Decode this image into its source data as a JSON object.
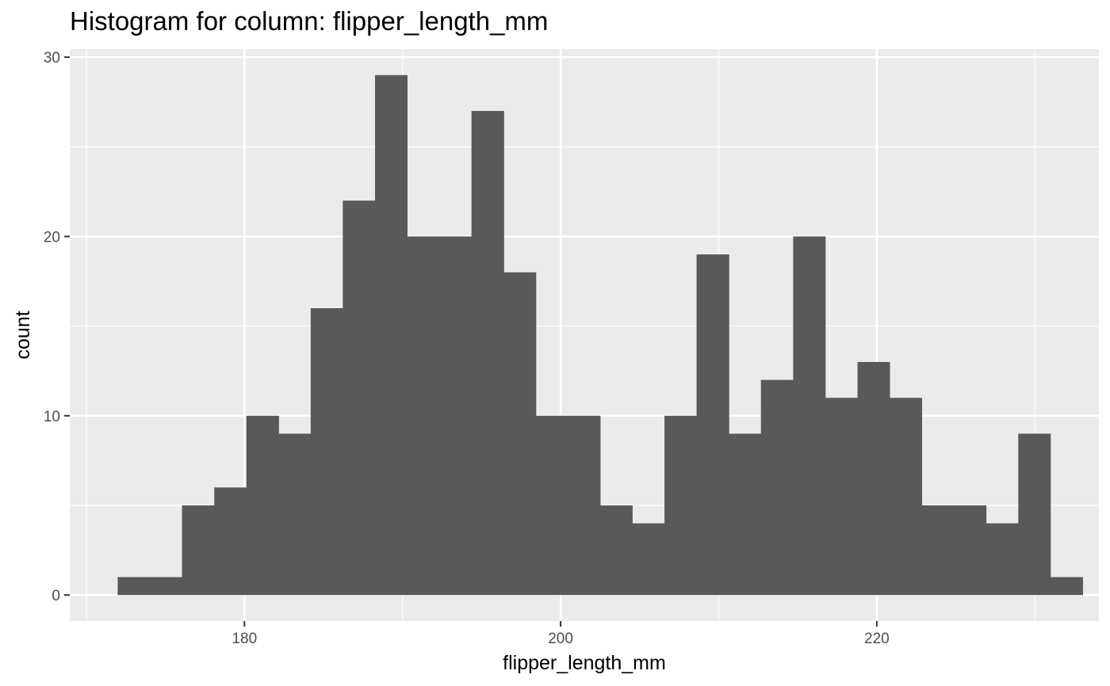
{
  "chart_data": {
    "type": "bar",
    "title": "Histogram for column: flipper_length_mm",
    "xlabel": "flipper_length_mm",
    "ylabel": "count",
    "xlim": [
      168.95,
      234.05
    ],
    "ylim": [
      -1.45,
      30.45
    ],
    "x_ticks": [
      180,
      200,
      220
    ],
    "x_minor_ticks": [
      170,
      190,
      210,
      230
    ],
    "y_ticks": [
      0,
      10,
      20,
      30
    ],
    "y_minor_ticks": [
      5,
      15,
      25
    ],
    "bin_width": 2.0345,
    "bins": [
      {
        "x0": 171.98,
        "x1": 174.02,
        "count": 1
      },
      {
        "x0": 174.02,
        "x1": 176.05,
        "count": 1
      },
      {
        "x0": 176.05,
        "x1": 178.09,
        "count": 5
      },
      {
        "x0": 178.09,
        "x1": 180.12,
        "count": 6
      },
      {
        "x0": 180.12,
        "x1": 182.16,
        "count": 10
      },
      {
        "x0": 182.16,
        "x1": 184.19,
        "count": 9
      },
      {
        "x0": 184.19,
        "x1": 186.22,
        "count": 16
      },
      {
        "x0": 186.22,
        "x1": 188.26,
        "count": 22
      },
      {
        "x0": 188.26,
        "x1": 190.29,
        "count": 29
      },
      {
        "x0": 190.29,
        "x1": 192.33,
        "count": 20
      },
      {
        "x0": 192.33,
        "x1": 194.36,
        "count": 20
      },
      {
        "x0": 194.36,
        "x1": 196.4,
        "count": 27
      },
      {
        "x0": 196.4,
        "x1": 198.43,
        "count": 18
      },
      {
        "x0": 198.43,
        "x1": 200.47,
        "count": 10
      },
      {
        "x0": 200.47,
        "x1": 202.5,
        "count": 10
      },
      {
        "x0": 202.5,
        "x1": 204.53,
        "count": 5
      },
      {
        "x0": 204.53,
        "x1": 206.57,
        "count": 4
      },
      {
        "x0": 206.57,
        "x1": 208.6,
        "count": 10
      },
      {
        "x0": 208.6,
        "x1": 210.64,
        "count": 19
      },
      {
        "x0": 210.64,
        "x1": 212.67,
        "count": 9
      },
      {
        "x0": 212.67,
        "x1": 214.71,
        "count": 12
      },
      {
        "x0": 214.71,
        "x1": 216.74,
        "count": 20
      },
      {
        "x0": 216.74,
        "x1": 218.78,
        "count": 11
      },
      {
        "x0": 218.78,
        "x1": 220.81,
        "count": 13
      },
      {
        "x0": 220.81,
        "x1": 222.84,
        "count": 11
      },
      {
        "x0": 222.84,
        "x1": 224.88,
        "count": 5
      },
      {
        "x0": 224.88,
        "x1": 226.91,
        "count": 5
      },
      {
        "x0": 226.91,
        "x1": 228.95,
        "count": 4
      },
      {
        "x0": 228.95,
        "x1": 230.98,
        "count": 9
      },
      {
        "x0": 230.98,
        "x1": 233.02,
        "count": 1
      }
    ],
    "grid": true,
    "panel_background": "#ebebeb",
    "grid_color": "#ffffff",
    "bar_color": "#595959",
    "tick_color": "#333333",
    "legend": "none"
  }
}
